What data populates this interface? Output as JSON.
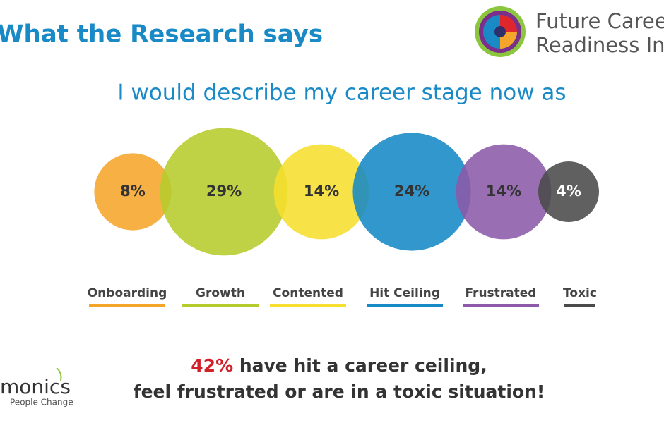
{
  "header": {
    "title": "What the Research says",
    "logo": [
      "Future Caree",
      "Readiness Ind"
    ]
  },
  "chart_data": {
    "type": "bubble",
    "title": "I would describe my career stage now as",
    "categories": [
      "Onboarding",
      "Growth",
      "Contented",
      "Hit Ceiling",
      "Frustrated",
      "Toxic"
    ],
    "values": [
      8,
      29,
      14,
      24,
      14,
      4
    ],
    "value_labels": [
      "8%",
      "29%",
      "14%",
      "24%",
      "14%",
      "4%"
    ],
    "colors": [
      "#f5a52a",
      "#b6cc2c",
      "#f6df2e",
      "#1689c6",
      "#8c5aa9",
      "#4a4a4a"
    ]
  },
  "footer": {
    "highlight": "42%",
    "line1": "have hit a career ceiling,",
    "line2": "feel frustrated or are in a toxic situation!"
  },
  "brand": {
    "name": "monics",
    "tagline": "People Change"
  }
}
